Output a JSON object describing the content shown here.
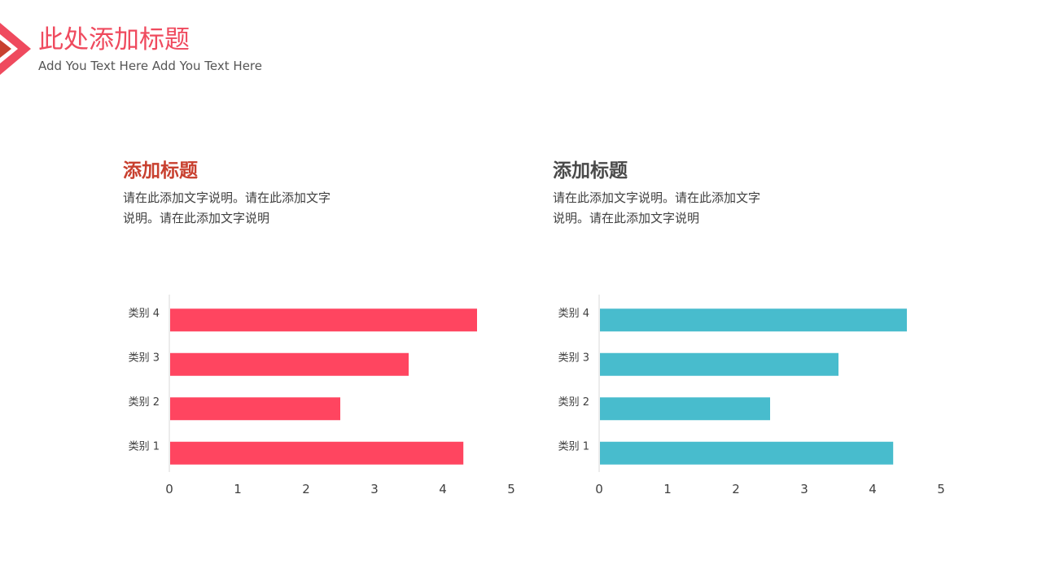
{
  "header": {
    "title": "此处添加标题",
    "subtitle": "Add You Text Here Add You Text Here",
    "accent_color": "#ef4a5e",
    "mark_icon": "chevron-right-icon"
  },
  "sections": [
    {
      "title": "添加标题",
      "desc_line1": "请在此添加文字说明。请在此添加文字",
      "desc_line2": "说明。请在此添加文字说明",
      "title_color": "#c8402f"
    },
    {
      "title": "添加标题",
      "desc_line1": "请在此添加文字说明。请在此添加文字",
      "desc_line2": "说明。请在此添加文字说明",
      "title_color": "#4a4a4a"
    }
  ],
  "chart_data": [
    {
      "type": "bar",
      "orientation": "horizontal",
      "categories": [
        "类别 1",
        "类别 2",
        "类别 3",
        "类别 4"
      ],
      "values": [
        4.3,
        2.5,
        3.5,
        4.5
      ],
      "xlim": [
        0,
        5
      ],
      "xticks": [
        "0",
        "1",
        "2",
        "3",
        "4",
        "5"
      ],
      "grid": false,
      "legend": "none",
      "color": "#ff4560"
    },
    {
      "type": "bar",
      "orientation": "horizontal",
      "categories": [
        "类别 1",
        "类别 2",
        "类别 3",
        "类别 4"
      ],
      "values": [
        4.3,
        2.5,
        3.5,
        4.5
      ],
      "xlim": [
        0,
        5
      ],
      "xticks": [
        "0",
        "1",
        "2",
        "3",
        "4",
        "5"
      ],
      "grid": false,
      "legend": "none",
      "color": "#48bccd"
    }
  ]
}
